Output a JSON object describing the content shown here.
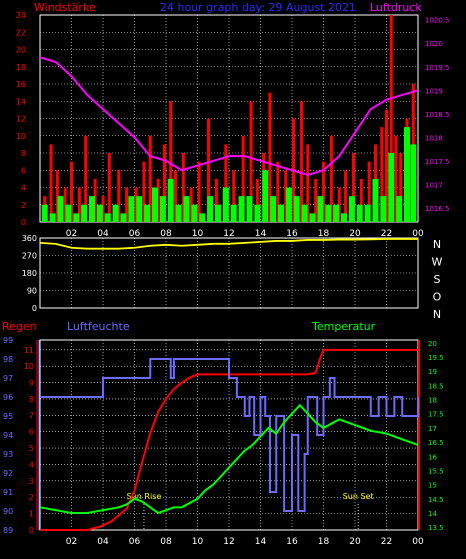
{
  "header": {
    "left_label": "Windstärke",
    "title": "24 hour graph day: 29 August 2021",
    "right_label": "Luftdruck"
  },
  "colors": {
    "background": "#000000",
    "grid": "#ffffff",
    "wind_gust": "#ff0000",
    "wind_avg": "#00ff00",
    "pressure": "#ff00ff",
    "direction": "#ffff00",
    "rain": "#ff0000",
    "humidity": "#6b6bff",
    "temperature": "#00ff00",
    "title": "#0000ff"
  },
  "chart_data": [
    {
      "type": "bar",
      "title": "24 hour graph day: 29 August 2021",
      "ylabel": "Windstärke",
      "y2label": "Luftdruck",
      "x_ticks": [
        "02",
        "04",
        "06",
        "08",
        "10",
        "12",
        "14",
        "16",
        "18",
        "20",
        "22",
        "00"
      ],
      "ylim": [
        0,
        24
      ],
      "y_ticks": [
        0,
        2,
        4,
        6,
        8,
        10,
        12,
        14,
        16,
        18,
        20,
        22,
        24
      ],
      "y2lim": [
        1016.2,
        1020.6
      ],
      "y2_ticks": [
        "1016.5",
        "1017",
        "1017.5",
        "1018",
        "1018.5",
        "1019",
        "1019.5",
        "1020",
        "1020.5"
      ],
      "series": [
        {
          "name": "Windstärke",
          "kind": "bar",
          "color": "#ff0000",
          "x": [
            0.3,
            0.7,
            1.1,
            1.6,
            2.0,
            2.5,
            2.9,
            3.5,
            4.0,
            4.4,
            5.0,
            5.5,
            6.1,
            6.6,
            7.0,
            7.5,
            7.9,
            8.3,
            8.6,
            9.1,
            9.6,
            10.1,
            10.7,
            11.2,
            11.8,
            12.3,
            12.9,
            13.4,
            13.8,
            14.2,
            14.6,
            15.1,
            15.6,
            16.1,
            16.6,
            17.0,
            17.5,
            18.0,
            18.5,
            19.0,
            19.4,
            19.9,
            20.4,
            20.9,
            21.3,
            21.7,
            22.0,
            22.3,
            22.6,
            22.9,
            23.3,
            23.7
          ],
          "values": [
            3,
            9,
            6,
            4,
            7,
            4,
            10,
            5,
            3,
            8,
            6,
            4,
            4,
            7,
            10,
            5,
            9,
            14,
            6,
            8,
            4,
            7,
            12,
            5,
            9,
            6,
            10,
            14,
            5,
            8,
            15,
            7,
            6,
            12,
            14,
            9,
            5,
            7,
            10,
            4,
            6,
            8,
            5,
            7,
            9,
            11,
            13,
            24,
            10,
            8,
            12,
            16
          ]
        },
        {
          "name": "",
          "kind": "bar",
          "color": "#00ff00",
          "x": [
            0.3,
            0.8,
            1.3,
            1.8,
            2.3,
            2.8,
            3.3,
            3.8,
            4.3,
            4.8,
            5.3,
            5.8,
            6.3,
            6.8,
            7.3,
            7.8,
            8.3,
            8.8,
            9.3,
            9.8,
            10.3,
            10.8,
            11.3,
            11.8,
            12.3,
            12.8,
            13.3,
            13.8,
            14.3,
            14.8,
            15.3,
            15.8,
            16.3,
            16.8,
            17.3,
            17.8,
            18.3,
            18.8,
            19.3,
            19.8,
            20.3,
            20.8,
            21.3,
            21.8,
            22.3,
            22.8,
            23.3,
            23.7
          ],
          "values": [
            2,
            1,
            3,
            2,
            1,
            2,
            3,
            2,
            1,
            2,
            1,
            3,
            3,
            2,
            4,
            3,
            5,
            2,
            3,
            2,
            1,
            3,
            2,
            4,
            2,
            3,
            3,
            2,
            6,
            3,
            2,
            4,
            3,
            2,
            1,
            3,
            2,
            2,
            1,
            3,
            2,
            2,
            5,
            3,
            8,
            3,
            11,
            9
          ]
        },
        {
          "name": "Luftdruck",
          "kind": "line",
          "axis": "y2",
          "color": "#ff00ff",
          "x": [
            0,
            1,
            2,
            3,
            4,
            5,
            6,
            7,
            8,
            9,
            10,
            11,
            12,
            13,
            14,
            15,
            16,
            17,
            18,
            19,
            20,
            21,
            22,
            23,
            24
          ],
          "values": [
            1019.7,
            1019.6,
            1019.3,
            1018.9,
            1018.6,
            1018.3,
            1018.0,
            1017.6,
            1017.5,
            1017.3,
            1017.4,
            1017.5,
            1017.6,
            1017.6,
            1017.5,
            1017.4,
            1017.3,
            1017.2,
            1017.3,
            1017.6,
            1018.1,
            1018.6,
            1018.8,
            1018.9,
            1019.0
          ]
        }
      ]
    },
    {
      "type": "line",
      "ylim": [
        0,
        360
      ],
      "y_ticks": [
        0,
        90,
        180,
        270,
        360
      ],
      "right_labels": [
        "N",
        "W",
        "S",
        "O",
        "N"
      ],
      "x_ticks": [
        "02",
        "04",
        "06",
        "08",
        "10",
        "12",
        "14",
        "16",
        "18",
        "20",
        "22",
        "00"
      ],
      "series": [
        {
          "name": "",
          "color": "#ffff00",
          "x": [
            0,
            1,
            2,
            3,
            4,
            5,
            6,
            7,
            8,
            9,
            10,
            11,
            12,
            13,
            14,
            15,
            16,
            17,
            18,
            19,
            20,
            21,
            22,
            23,
            24
          ],
          "values": [
            335,
            330,
            310,
            305,
            305,
            305,
            310,
            320,
            325,
            320,
            325,
            330,
            330,
            335,
            340,
            345,
            345,
            350,
            350,
            352,
            352,
            353,
            355,
            355,
            355
          ]
        }
      ]
    },
    {
      "type": "line",
      "labels": {
        "rain": "Regen",
        "humidity": "Luftfeuchte",
        "temperature": "Temperatur"
      },
      "x_ticks": [
        "02",
        "04",
        "06",
        "08",
        "10",
        "12",
        "14",
        "16",
        "18",
        "20",
        "22",
        "00"
      ],
      "rain_axis": {
        "lim": [
          0,
          11.6
        ],
        "ticks": [
          0,
          1,
          2,
          3,
          4,
          5,
          6,
          7,
          8,
          9,
          10,
          11
        ]
      },
      "humidity_axis": {
        "lim": [
          89,
          99
        ],
        "ticks": [
          89,
          90,
          91,
          92,
          93,
          94,
          95,
          96,
          97,
          98,
          99
        ]
      },
      "temperature_axis": {
        "lim": [
          13.4,
          20.1
        ],
        "ticks": [
          "13.5",
          "14",
          "14.5",
          "15",
          "15.5",
          "16",
          "16.5",
          "17",
          "17.5",
          "18",
          "18.5",
          "19",
          "19.5",
          "20"
        ]
      },
      "annotations": [
        {
          "text": "Sun Rise",
          "x": 6.6
        },
        {
          "text": "Sun Set",
          "x": 20.2
        }
      ],
      "series": [
        {
          "name": "Regen",
          "axis": "rain",
          "color": "#ff0000",
          "step": false,
          "x": [
            0,
            1,
            2,
            3,
            3.8,
            4.5,
            5,
            5.5,
            6,
            6.5,
            7,
            7.5,
            8,
            8.5,
            9,
            9.5,
            10,
            11,
            12,
            13,
            14,
            15,
            16,
            17,
            17.5,
            17.8,
            18,
            19,
            20,
            21,
            22,
            23,
            24
          ],
          "values": [
            0,
            0,
            0,
            0,
            0.2,
            0.5,
            0.9,
            1.3,
            2.4,
            4.2,
            5.9,
            7.2,
            8.0,
            8.6,
            9.0,
            9.3,
            9.5,
            9.5,
            9.5,
            9.5,
            9.5,
            9.5,
            9.5,
            9.5,
            9.6,
            10.5,
            11.0,
            11.0,
            11.0,
            11.0,
            11.0,
            11.0,
            11.0
          ]
        },
        {
          "name": "Luftfeuchte",
          "axis": "humidity",
          "color": "#6b6bff",
          "step": true,
          "x": [
            0,
            4,
            4.8,
            6.7,
            7,
            8,
            8.3,
            8.5,
            9,
            10,
            11,
            12,
            12.5,
            13,
            13.3,
            13.6,
            14,
            14.3,
            14.6,
            15,
            15.5,
            16,
            16.4,
            16.8,
            17,
            17.6,
            18,
            18.4,
            18.7,
            19,
            20,
            21,
            21.5,
            22,
            22.5,
            23,
            24
          ],
          "values": [
            96,
            97,
            97,
            97,
            98,
            98,
            97,
            98,
            98,
            98,
            98,
            97,
            96,
            95,
            96,
            94,
            96,
            95,
            91,
            95,
            90,
            94,
            90,
            93,
            96,
            94,
            96,
            97,
            96,
            96,
            96,
            95,
            96,
            95,
            96,
            95,
            96
          ]
        },
        {
          "name": "Temperatur",
          "axis": "temperature",
          "color": "#00ff00",
          "step": false,
          "x": [
            0,
            1,
            2,
            3,
            4,
            5,
            5.5,
            6,
            6.5,
            7,
            7.5,
            8,
            8.5,
            9,
            10,
            10.5,
            11,
            11.5,
            12,
            12.5,
            13,
            13.5,
            14,
            14.5,
            15,
            15.5,
            16,
            16.5,
            17,
            17.5,
            18,
            19,
            20,
            21,
            22,
            23,
            24
          ],
          "values": [
            14.2,
            14.1,
            14.0,
            14.0,
            14.1,
            14.2,
            14.3,
            14.5,
            14.4,
            14.2,
            14.0,
            14.1,
            14.2,
            14.2,
            14.5,
            14.8,
            15.0,
            15.3,
            15.6,
            15.9,
            16.2,
            16.4,
            16.7,
            17.0,
            16.8,
            17.2,
            17.5,
            17.8,
            17.5,
            17.2,
            17.0,
            17.3,
            17.1,
            16.9,
            16.8,
            16.6,
            16.4
          ]
        }
      ]
    }
  ]
}
